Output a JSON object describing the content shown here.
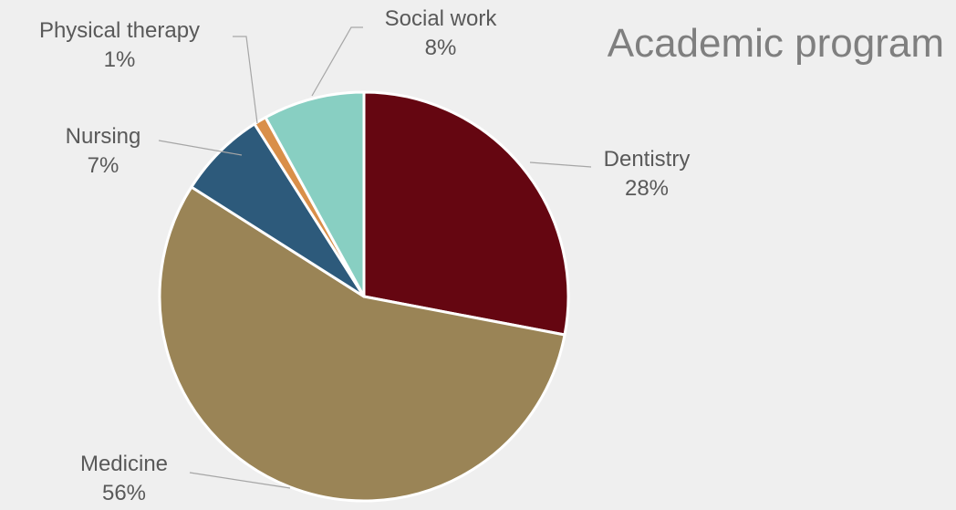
{
  "chart_data": {
    "type": "pie",
    "title": "Academic program",
    "start_angle_deg": 0,
    "direction": "clockwise",
    "slices": [
      {
        "label": "Dentistry",
        "value": 28,
        "value_label": "28%",
        "color": "#650611"
      },
      {
        "label": "Medicine",
        "value": 56,
        "value_label": "56%",
        "color": "#9a8456"
      },
      {
        "label": "Nursing",
        "value": 7,
        "value_label": "7%",
        "color": "#2d5a7b"
      },
      {
        "label": "Physical therapy",
        "value": 1,
        "value_label": "1%",
        "color": "#d98f49"
      },
      {
        "label": "Social work",
        "value": 8,
        "value_label": "8%",
        "color": "#88cfc2"
      }
    ],
    "slice_border_color": "#ffffff",
    "leader_line_color": "#a6a6a6",
    "background_color": "#efefef"
  }
}
